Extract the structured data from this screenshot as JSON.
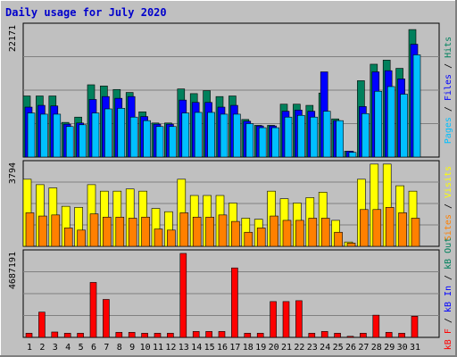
{
  "title": "Daily usage for July 2020",
  "colors": {
    "hits": "#00805c",
    "files": "#0000ff",
    "pages": "#00c0ff",
    "visits": "#ffff00",
    "sites": "#ff8000",
    "kbin": "#0000ff",
    "kbout": "#00805c",
    "kbf": "#ff0000",
    "weekend": "#00805c",
    "weekday": "#000000",
    "sep": "#000000"
  },
  "chart_data": [
    {
      "type": "bar",
      "title": "Daily usage for July 2020",
      "categories": [
        "1",
        "2",
        "3",
        "4",
        "5",
        "6",
        "7",
        "8",
        "9",
        "10",
        "11",
        "12",
        "13",
        "14",
        "15",
        "16",
        "17",
        "18",
        "19",
        "20",
        "21",
        "22",
        "23",
        "24",
        "25",
        "26",
        "27",
        "28",
        "29",
        "30",
        "31"
      ],
      "weekend_days": [
        "4",
        "5",
        "11",
        "12",
        "18",
        "19",
        "25",
        "26"
      ],
      "ymax_label": "22171",
      "ylim": [
        0,
        22171
      ],
      "series": [
        {
          "name": "Hits",
          "values": [
            10400,
            10400,
            10400,
            5900,
            6800,
            12300,
            12100,
            11500,
            11000,
            7700,
            5800,
            5800,
            11600,
            10800,
            11300,
            10300,
            10400,
            6400,
            5400,
            5400,
            9000,
            9000,
            8800,
            10900,
            6500,
            1000,
            13000,
            15800,
            16500,
            15100,
            21700
          ]
        },
        {
          "name": "Files",
          "values": [
            8500,
            8800,
            8700,
            5600,
            5800,
            9800,
            10300,
            10000,
            10300,
            6900,
            5600,
            5600,
            9700,
            9300,
            9300,
            8500,
            8800,
            6100,
            5300,
            5300,
            7800,
            8000,
            7800,
            14500,
            6200,
            1000,
            8600,
            14500,
            14700,
            13300,
            19200
          ]
        },
        {
          "name": "Pages",
          "values": [
            7500,
            7300,
            7300,
            5200,
            5500,
            7500,
            8200,
            8300,
            6800,
            6200,
            5200,
            5200,
            7500,
            7600,
            7600,
            7300,
            7300,
            5700,
            5000,
            5000,
            6800,
            7100,
            6800,
            7800,
            6200,
            800,
            7400,
            11200,
            12000,
            10700,
            17400
          ]
        }
      ],
      "side_labels": [
        "Hits",
        "Files",
        "Pages"
      ]
    },
    {
      "type": "bar",
      "categories": [
        "1",
        "2",
        "3",
        "4",
        "5",
        "6",
        "7",
        "8",
        "9",
        "10",
        "11",
        "12",
        "13",
        "14",
        "15",
        "16",
        "17",
        "18",
        "19",
        "20",
        "21",
        "22",
        "23",
        "24",
        "25",
        "26",
        "27",
        "28",
        "29",
        "30",
        "31"
      ],
      "ymax_label": "3794",
      "ylim": [
        0,
        3794
      ],
      "series": [
        {
          "name": "Visits",
          "values": [
            3100,
            2850,
            2700,
            1850,
            1800,
            2850,
            2550,
            2550,
            2650,
            2550,
            1750,
            1600,
            3100,
            2350,
            2350,
            2350,
            2000,
            1300,
            1250,
            2550,
            2200,
            2000,
            2250,
            2500,
            1200,
            200,
            3100,
            3800,
            3800,
            2800,
            2550
          ]
        },
        {
          "name": "Sites",
          "values": [
            1550,
            1400,
            1450,
            850,
            750,
            1500,
            1350,
            1350,
            1300,
            1350,
            800,
            750,
            1550,
            1350,
            1350,
            1450,
            1150,
            650,
            850,
            1400,
            1200,
            1200,
            1300,
            1300,
            650,
            150,
            1700,
            1700,
            1800,
            1550,
            1300
          ]
        }
      ],
      "side_labels": [
        "Visits",
        "Sites"
      ]
    },
    {
      "type": "bar",
      "categories": [
        "1",
        "2",
        "3",
        "4",
        "5",
        "6",
        "7",
        "8",
        "9",
        "10",
        "11",
        "12",
        "13",
        "14",
        "15",
        "16",
        "17",
        "18",
        "19",
        "20",
        "21",
        "22",
        "23",
        "24",
        "25",
        "26",
        "27",
        "28",
        "29",
        "30",
        "31"
      ],
      "ymax_label": "4687191",
      "ylim": [
        0,
        4687191
      ],
      "series": [
        {
          "name": "KBytes F",
          "values": [
            230000,
            1410000,
            300000,
            230000,
            230000,
            3070000,
            2120000,
            280000,
            280000,
            230000,
            230000,
            230000,
            4690000,
            330000,
            330000,
            330000,
            3880000,
            230000,
            230000,
            2000000,
            2000000,
            2050000,
            230000,
            330000,
            230000,
            60000,
            230000,
            1240000,
            280000,
            230000,
            1180000
          ]
        }
      ],
      "side_labels": [
        "kB F",
        "kB In",
        "kB Out"
      ]
    }
  ]
}
